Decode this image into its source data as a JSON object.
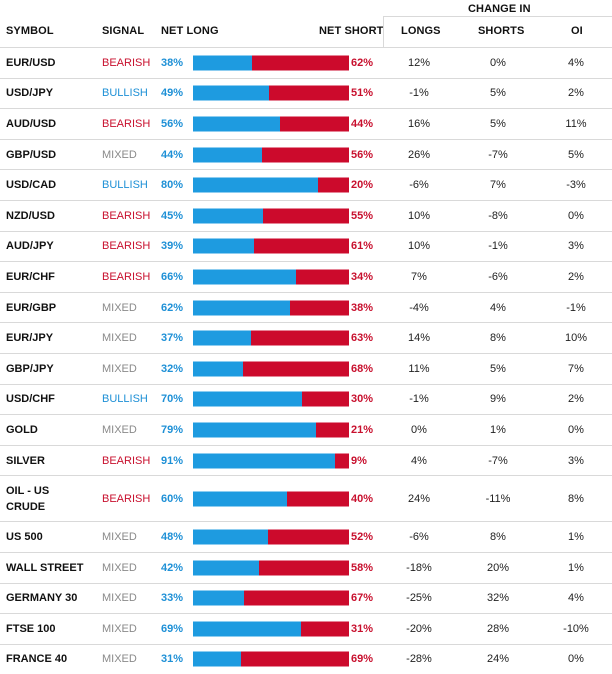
{
  "headers": {
    "symbol": "SYMBOL",
    "signal": "SIGNAL",
    "net_long": "NET LONG",
    "net_short": "NET SHORT",
    "change_in": "CHANGE IN",
    "longs": "LONGS",
    "shorts": "SHORTS",
    "oi": "OI"
  },
  "colors": {
    "bullish": "#1e90d6",
    "bearish": "#c8102e",
    "mixed": "#8a8a8a",
    "long_bar": "#1e9be0",
    "short_bar": "#cc0a2c"
  },
  "rows": [
    {
      "symbol": "EUR/USD",
      "signal": "BEARISH",
      "net_long": "38%",
      "net_short": "62%",
      "long_fraction": 0.38,
      "longs": "12%",
      "shorts": "0%",
      "oi": "4%"
    },
    {
      "symbol": "USD/JPY",
      "signal": "BULLISH",
      "net_long": "49%",
      "net_short": "51%",
      "long_fraction": 0.49,
      "longs": "-1%",
      "shorts": "5%",
      "oi": "2%"
    },
    {
      "symbol": "AUD/USD",
      "signal": "BEARISH",
      "net_long": "56%",
      "net_short": "44%",
      "long_fraction": 0.56,
      "longs": "16%",
      "shorts": "5%",
      "oi": "11%"
    },
    {
      "symbol": "GBP/USD",
      "signal": "MIXED",
      "net_long": "44%",
      "net_short": "56%",
      "long_fraction": 0.44,
      "longs": "26%",
      "shorts": "-7%",
      "oi": "5%"
    },
    {
      "symbol": "USD/CAD",
      "signal": "BULLISH",
      "net_long": "80%",
      "net_short": "20%",
      "long_fraction": 0.8,
      "longs": "-6%",
      "shorts": "7%",
      "oi": "-3%"
    },
    {
      "symbol": "NZD/USD",
      "signal": "BEARISH",
      "net_long": "45%",
      "net_short": "55%",
      "long_fraction": 0.45,
      "longs": "10%",
      "shorts": "-8%",
      "oi": "0%"
    },
    {
      "symbol": "AUD/JPY",
      "signal": "BEARISH",
      "net_long": "39%",
      "net_short": "61%",
      "long_fraction": 0.39,
      "longs": "10%",
      "shorts": "-1%",
      "oi": "3%"
    },
    {
      "symbol": "EUR/CHF",
      "signal": "BEARISH",
      "net_long": "66%",
      "net_short": "34%",
      "long_fraction": 0.66,
      "longs": "7%",
      "shorts": "-6%",
      "oi": "2%"
    },
    {
      "symbol": "EUR/GBP",
      "signal": "MIXED",
      "net_long": "62%",
      "net_short": "38%",
      "long_fraction": 0.62,
      "longs": "-4%",
      "shorts": "4%",
      "oi": "-1%"
    },
    {
      "symbol": "EUR/JPY",
      "signal": "MIXED",
      "net_long": "37%",
      "net_short": "63%",
      "long_fraction": 0.37,
      "longs": "14%",
      "shorts": "8%",
      "oi": "10%"
    },
    {
      "symbol": "GBP/JPY",
      "signal": "MIXED",
      "net_long": "32%",
      "net_short": "68%",
      "long_fraction": 0.32,
      "longs": "11%",
      "shorts": "5%",
      "oi": "7%"
    },
    {
      "symbol": "USD/CHF",
      "signal": "BULLISH",
      "net_long": "70%",
      "net_short": "30%",
      "long_fraction": 0.7,
      "longs": "-1%",
      "shorts": "9%",
      "oi": "2%"
    },
    {
      "symbol": "GOLD",
      "signal": "MIXED",
      "net_long": "79%",
      "net_short": "21%",
      "long_fraction": 0.79,
      "longs": "0%",
      "shorts": "1%",
      "oi": "0%"
    },
    {
      "symbol": "SILVER",
      "signal": "BEARISH",
      "net_long": "91%",
      "net_short": "9%",
      "long_fraction": 0.91,
      "longs": "4%",
      "shorts": "-7%",
      "oi": "3%"
    },
    {
      "symbol": "OIL - US CRUDE",
      "signal": "BEARISH",
      "net_long": "60%",
      "net_short": "40%",
      "long_fraction": 0.6,
      "longs": "24%",
      "shorts": "-11%",
      "oi": "8%"
    },
    {
      "symbol": "US 500",
      "signal": "MIXED",
      "net_long": "48%",
      "net_short": "52%",
      "long_fraction": 0.48,
      "longs": "-6%",
      "shorts": "8%",
      "oi": "1%"
    },
    {
      "symbol": "WALL STREET",
      "signal": "MIXED",
      "net_long": "42%",
      "net_short": "58%",
      "long_fraction": 0.42,
      "longs": "-18%",
      "shorts": "20%",
      "oi": "1%"
    },
    {
      "symbol": "GERMANY 30",
      "signal": "MIXED",
      "net_long": "33%",
      "net_short": "67%",
      "long_fraction": 0.33,
      "longs": "-25%",
      "shorts": "32%",
      "oi": "4%"
    },
    {
      "symbol": "FTSE 100",
      "signal": "MIXED",
      "net_long": "69%",
      "net_short": "31%",
      "long_fraction": 0.69,
      "longs": "-20%",
      "shorts": "28%",
      "oi": "-10%"
    },
    {
      "symbol": "FRANCE 40",
      "signal": "MIXED",
      "net_long": "31%",
      "net_short": "69%",
      "long_fraction": 0.31,
      "longs": "-28%",
      "shorts": "24%",
      "oi": "0%"
    }
  ]
}
